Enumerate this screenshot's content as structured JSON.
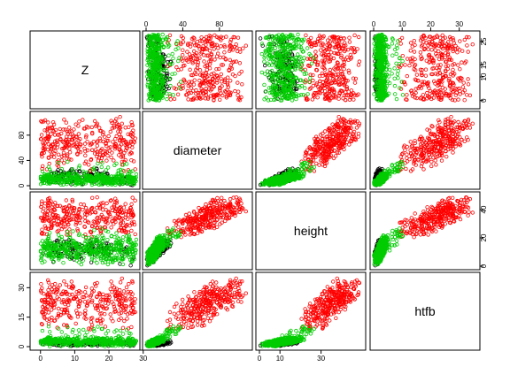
{
  "chart_data": {
    "type": "scatter",
    "subtype": "scatterplot-matrix",
    "variables": [
      "Z",
      "diameter",
      "height",
      "htfb"
    ],
    "ranges": {
      "Z": [
        -2,
        28
      ],
      "diameter": [
        0,
        112
      ],
      "height": [
        0,
        50
      ],
      "htfb": [
        0,
        36
      ]
    },
    "ticks": {
      "Z": [
        0,
        10,
        20,
        30
      ],
      "diameter": [
        0,
        40,
        80
      ],
      "height": [
        0,
        10,
        30
      ],
      "htfb": [
        0,
        15,
        30
      ]
    },
    "top_axis_ticks": {
      "diameter": [
        0,
        40,
        80
      ],
      "htfb": [
        0,
        10,
        20,
        30
      ]
    },
    "left_axis_ticks": {
      "diameter": [
        0,
        40,
        80
      ],
      "htfb": [
        0,
        15,
        30
      ]
    },
    "right_axis_ticks": {
      "Z": [
        0,
        10,
        15,
        25
      ],
      "height": [
        0,
        20,
        40
      ]
    },
    "bottom_axis_ticks": {
      "Z": [
        0,
        10,
        20,
        30
      ],
      "height": [
        0,
        10,
        30
      ]
    },
    "colors": {
      "group1": "#000000",
      "group2": "#ff0000",
      "group3": "#00cc00"
    },
    "series": [
      {
        "clusters": [
          {
            "Z": [
              3,
              20
            ],
            "diameter": [
              2,
              30
            ],
            "height": [
              5,
              20
            ],
            "htfb": [
              0,
              3
            ],
            "n": 90
          },
          {
            "Z": [
              0,
              28
            ],
            "diameter": [
              0,
              15
            ],
            "height": [
              0,
              18
            ],
            "htfb": [
              0,
              3
            ],
            "n": 50
          }
        ]
      },
      {
        "clusters": [
          {
            "Z": [
              0,
              28
            ],
            "diameter": [
              20,
              112
            ],
            "height": [
              20,
              50
            ],
            "htfb": [
              8,
              36
            ],
            "n": 320
          }
        ]
      },
      {
        "clusters": [
          {
            "Z": [
              0,
              28
            ],
            "diameter": [
              0,
              20
            ],
            "height": [
              0,
              22
            ],
            "htfb": [
              0,
              5
            ],
            "n": 400
          },
          {
            "Z": [
              0,
              28
            ],
            "diameter": [
              10,
              40
            ],
            "height": [
              10,
              30
            ],
            "htfb": [
              2,
              12
            ],
            "n": 40
          }
        ]
      }
    ]
  }
}
